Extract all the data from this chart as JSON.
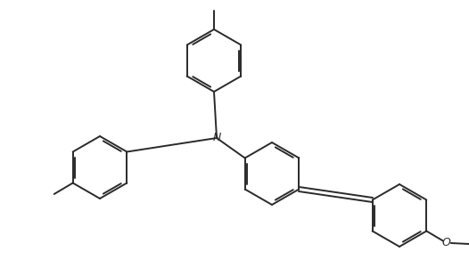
{
  "bg_color": "#ffffff",
  "line_color": "#2a2a2a",
  "line_width": 1.4,
  "dbo": 0.05,
  "figsize": [
    5.26,
    3.1
  ],
  "dpi": 100,
  "xlim": [
    0,
    10.52
  ],
  "ylim": [
    0,
    6.2
  ]
}
